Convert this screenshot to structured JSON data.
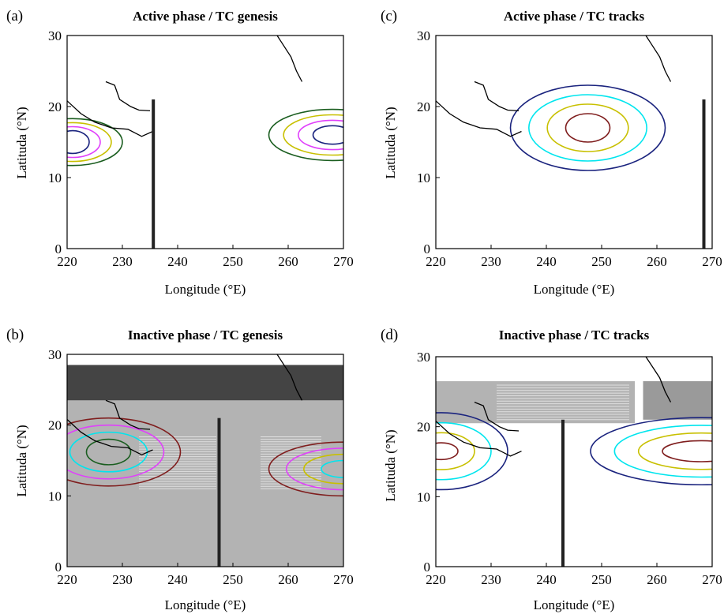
{
  "chart_data": [
    {
      "type": "contour",
      "panel_label": "(a)",
      "title": "Active phase / TC genesis",
      "xlabel": "Longitude (°E)",
      "ylabel": "Latituda (°N)",
      "xlim": [
        220,
        270
      ],
      "ylim": [
        0,
        30
      ],
      "xticks": [
        220,
        230,
        240,
        250,
        260,
        270
      ],
      "yticks": [
        0,
        10,
        20,
        30
      ],
      "contour_sets": [
        {
          "center": [
            221,
            15
          ],
          "rx": [
            3,
            9
          ],
          "ry": [
            1.6,
            3.3
          ],
          "colors": [
            "#1a237e",
            "#e040fb",
            "#c8c000",
            "#1b5e20"
          ]
        },
        {
          "center": [
            268,
            16
          ],
          "rx": [
            3.5,
            11.5
          ],
          "ry": [
            1.3,
            3.6
          ],
          "colors": [
            "#1a237e",
            "#e040fb",
            "#c8c000",
            "#1b5e20"
          ]
        }
      ],
      "vline_lon": 235.6,
      "gray_region": null
    },
    {
      "type": "contour",
      "panel_label": "(b)",
      "title": "Inactive phase / TC genesis",
      "xlabel": "Longitude (°E)",
      "ylabel": "Latituda (°N)",
      "xlim": [
        220,
        270
      ],
      "ylim": [
        0,
        30
      ],
      "xticks": [
        220,
        230,
        240,
        250,
        260,
        270
      ],
      "yticks": [
        0,
        10,
        20,
        30
      ],
      "contour_sets": [
        {
          "center": [
            227.5,
            16.2
          ],
          "rx": [
            4,
            13
          ],
          "ry": [
            1.8,
            4.8
          ],
          "colors": [
            "#1b5e20",
            "#00e5ee",
            "#e040fb",
            "#7f1d1d"
          ]
        },
        {
          "center": [
            270,
            13.8
          ],
          "rx": [
            4,
            13.5
          ],
          "ry": [
            1.2,
            3.8
          ],
          "colors": [
            "#00e5ee",
            "#c8c000",
            "#e040fb",
            "#7f1d1d"
          ]
        }
      ],
      "vline_lon": 247.5,
      "gray_region": "lower"
    },
    {
      "type": "contour",
      "panel_label": "(c)",
      "title": "Active phase / TC tracks",
      "xlabel": "Longitude (°E)",
      "ylabel": "Latituda (°N)",
      "xlim": [
        220,
        270
      ],
      "ylim": [
        0,
        30
      ],
      "xticks": [
        220,
        230,
        240,
        250,
        260,
        270
      ],
      "yticks": [
        0,
        10,
        20,
        30
      ],
      "contour_sets": [
        {
          "center": [
            247.5,
            17
          ],
          "rx": [
            4,
            14
          ],
          "ry": [
            2,
            6
          ],
          "colors": [
            "#7f1d1d",
            "#c8c000",
            "#00e5ee",
            "#1a237e"
          ]
        }
      ],
      "vline_lon": 268.5,
      "gray_region": null
    },
    {
      "type": "contour",
      "panel_label": "(d)",
      "title": "Inactive phase / TC tracks",
      "xlabel": "Longitude (°E)",
      "ylabel": "Latituda (°N)",
      "xlim": [
        220,
        270
      ],
      "ylim": [
        0,
        30
      ],
      "xticks": [
        220,
        230,
        240,
        250,
        260,
        270
      ],
      "yticks": [
        0,
        10,
        20,
        30
      ],
      "contour_sets": [
        {
          "center": [
            221,
            16.5
          ],
          "rx": [
            3,
            12
          ],
          "ry": [
            1.2,
            5.5
          ],
          "colors": [
            "#7f1d1d",
            "#c8c000",
            "#00e5ee",
            "#1a237e"
          ]
        },
        {
          "center": [
            268,
            16.5
          ],
          "rx": [
            7,
            20
          ],
          "ry": [
            1.5,
            4.8
          ],
          "colors": [
            "#7f1d1d",
            "#c8c000",
            "#00e5ee",
            "#1a237e"
          ]
        }
      ],
      "vline_lon": 243,
      "gray_region": "upper"
    }
  ]
}
